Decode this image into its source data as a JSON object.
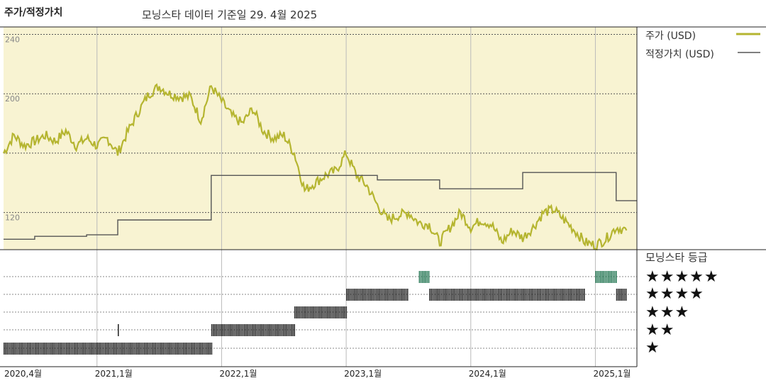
{
  "header": {
    "title": "주가/적정가치",
    "subtitle": "모닝스타 데이터 기준일 29. 4월 2025"
  },
  "legend": {
    "price_label": "주가 (USD)",
    "fair_value_label": "적정가치 (USD)",
    "price_color": "#b5b530",
    "fair_value_color": "#555555"
  },
  "rating_panel": {
    "title": "모닝스타 등급",
    "levels": [
      "★★★★★",
      "★★★★",
      "★★★",
      "★★",
      "★"
    ]
  },
  "chart_data": [
    {
      "type": "line",
      "y_ticks": [
        120,
        160,
        200,
        240
      ],
      "y_tick_labels": [
        "120",
        "",
        "200",
        "240"
      ],
      "ylim": [
        95,
        245
      ],
      "x_ticks": [
        "2020,4월",
        "2021,1월",
        "2022,1월",
        "2023,1월",
        "2024,1월",
        "2025,1월"
      ],
      "series": [
        {
          "name": "주가 (USD)",
          "points": [
            [
              "2020-04",
              160
            ],
            [
              "2020-05",
              172
            ],
            [
              "2020-06",
              165
            ],
            [
              "2020-07",
              168
            ],
            [
              "2020-08",
              172
            ],
            [
              "2020-09",
              168
            ],
            [
              "2020-10",
              175
            ],
            [
              "2020-11",
              165
            ],
            [
              "2020-12",
              170
            ],
            [
              "2021-01",
              165
            ],
            [
              "2021-02",
              170
            ],
            [
              "2021-03",
              160
            ],
            [
              "2021-04",
              175
            ],
            [
              "2021-05",
              188
            ],
            [
              "2021-06",
              200
            ],
            [
              "2021-07",
              205
            ],
            [
              "2021-08",
              200
            ],
            [
              "2021-09",
              198
            ],
            [
              "2021-10",
              198
            ],
            [
              "2021-11",
              182
            ],
            [
              "2021-12",
              205
            ],
            [
              "2022-01",
              195
            ],
            [
              "2022-02",
              185
            ],
            [
              "2022-03",
              180
            ],
            [
              "2022-04",
              190
            ],
            [
              "2022-05",
              175
            ],
            [
              "2022-06",
              170
            ],
            [
              "2022-07",
              172
            ],
            [
              "2022-08",
              160
            ],
            [
              "2022-09",
              135
            ],
            [
              "2022-10",
              140
            ],
            [
              "2022-11",
              145
            ],
            [
              "2022-12",
              148
            ],
            [
              "2023-01",
              160
            ],
            [
              "2023-02",
              145
            ],
            [
              "2023-03",
              138
            ],
            [
              "2023-04",
              125
            ],
            [
              "2023-05",
              115
            ],
            [
              "2023-06",
              118
            ],
            [
              "2023-07",
              120
            ],
            [
              "2023-08",
              113
            ],
            [
              "2023-09",
              112
            ],
            [
              "2023-10",
              100
            ],
            [
              "2023-11",
              110
            ],
            [
              "2023-12",
              120
            ],
            [
              "2024-01",
              110
            ],
            [
              "2024-02",
              115
            ],
            [
              "2024-03",
              112
            ],
            [
              "2024-04",
              100
            ],
            [
              "2024-05",
              108
            ],
            [
              "2024-06",
              103
            ],
            [
              "2024-07",
              110
            ],
            [
              "2024-08",
              120
            ],
            [
              "2024-09",
              122
            ],
            [
              "2024-10",
              115
            ],
            [
              "2024-11",
              108
            ],
            [
              "2024-12",
              100
            ],
            [
              "2025-01",
              98
            ],
            [
              "2025-02",
              102
            ],
            [
              "2025-03",
              110
            ],
            [
              "2025-04",
              108
            ]
          ]
        },
        {
          "name": "적정가치 (USD)",
          "steps": [
            [
              "2020-04",
              102
            ],
            [
              "2020-07",
              104
            ],
            [
              "2020-12",
              105
            ],
            [
              "2021-03",
              115
            ],
            [
              "2021-12",
              145
            ],
            [
              "2023-04",
              142
            ],
            [
              "2023-10",
              136
            ],
            [
              "2024-06",
              147
            ],
            [
              "2025-03",
              128
            ]
          ]
        }
      ]
    },
    {
      "type": "heatmap",
      "levels": [
        "★",
        "★★",
        "★★★",
        "★★★★",
        "★★★★★"
      ],
      "segments": [
        {
          "start": "2020-04",
          "end": "2021-12",
          "stars": 1
        },
        {
          "start": "2021-03",
          "end": "2021-03",
          "stars": 2
        },
        {
          "start": "2021-12",
          "end": "2022-08",
          "stars": 2
        },
        {
          "start": "2022-08",
          "end": "2023-01",
          "stars": 3
        },
        {
          "start": "2023-01",
          "end": "2023-07",
          "stars": 4
        },
        {
          "start": "2023-08",
          "end": "2023-09",
          "stars": 5
        },
        {
          "start": "2023-09",
          "end": "2024-12",
          "stars": 4
        },
        {
          "start": "2025-01",
          "end": "2025-03",
          "stars": 5
        },
        {
          "start": "2025-03",
          "end": "2025-04",
          "stars": 4
        }
      ],
      "colors": {
        "default": "#2b2b2b",
        "five_star": "#2e7d5b"
      }
    }
  ]
}
